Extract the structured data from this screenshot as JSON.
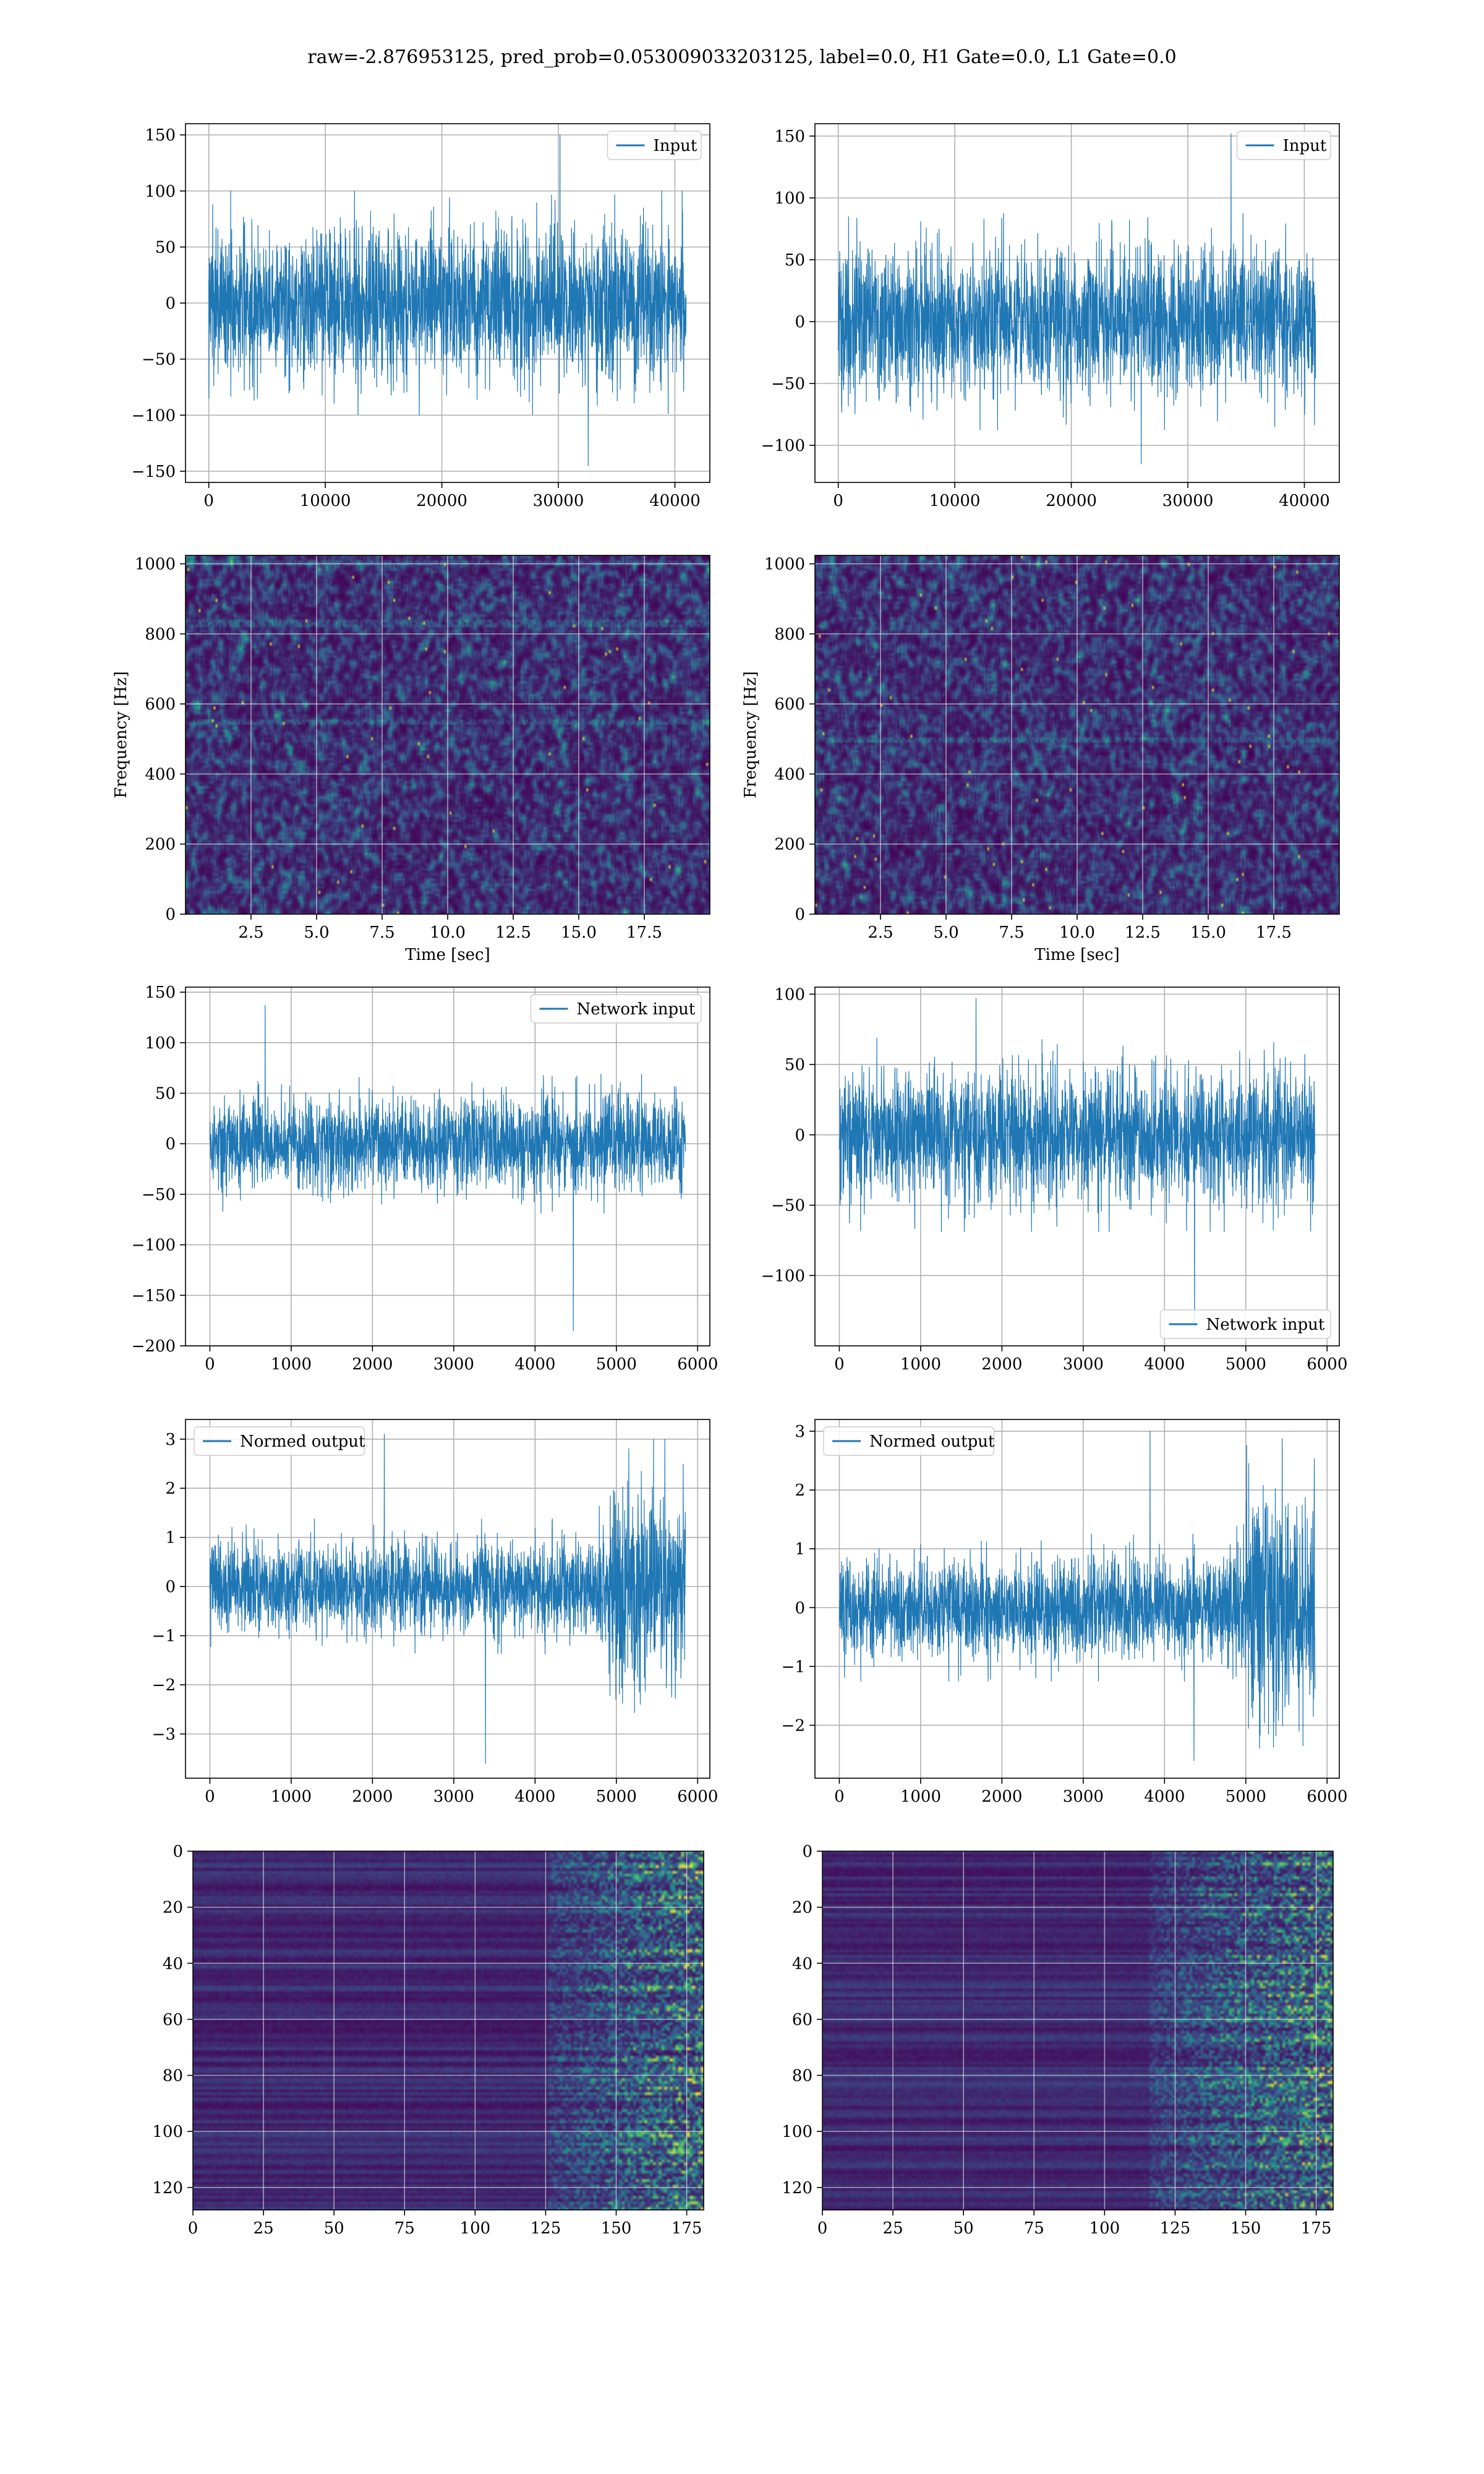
{
  "figure_title": "raw=-2.876953125, pred_prob=0.053009033203125, label=0.0, H1 Gate=0.0, L1 Gate=0.0",
  "colors": {
    "line": "#1f77b4",
    "grid": "#b0b0b0",
    "axes": "#000000",
    "cmap": [
      "#440154",
      "#3b528b",
      "#21918c",
      "#5ec962",
      "#fde725"
    ]
  },
  "chart_data": [
    {
      "id": "input-h1",
      "type": "line",
      "series": [
        {
          "name": "Input",
          "amplitude": 80,
          "spikes": [
            150,
            -145
          ]
        }
      ],
      "legend": "top-right",
      "xlim": [
        -2000,
        43000
      ],
      "ylim": [
        -160,
        160
      ],
      "xticks": [
        0,
        10000,
        20000,
        30000,
        40000
      ],
      "xtick_labels": [
        "0",
        "10000",
        "20000",
        "30000",
        "40000"
      ],
      "yticks": [
        -150,
        -100,
        -50,
        0,
        50,
        100,
        150
      ],
      "ytick_labels": [
        "−150",
        "−100",
        "−50",
        "0",
        "50",
        "100",
        "150"
      ],
      "x_range": [
        0,
        40960
      ],
      "xlabel": "",
      "ylabel": "",
      "grid": true
    },
    {
      "id": "input-l1",
      "type": "line",
      "series": [
        {
          "name": "Input",
          "amplitude": 70,
          "spikes": [
            152,
            -115
          ]
        }
      ],
      "legend": "top-right",
      "xlim": [
        -2000,
        43000
      ],
      "ylim": [
        -130,
        160
      ],
      "xticks": [
        0,
        10000,
        20000,
        30000,
        40000
      ],
      "xtick_labels": [
        "0",
        "10000",
        "20000",
        "30000",
        "40000"
      ],
      "yticks": [
        -100,
        -50,
        0,
        50,
        100,
        150
      ],
      "ytick_labels": [
        "−100",
        "−50",
        "0",
        "50",
        "100",
        "150"
      ],
      "x_range": [
        0,
        40960
      ],
      "xlabel": "",
      "ylabel": "",
      "grid": true
    },
    {
      "id": "spectrogram-h1",
      "type": "heatmap",
      "xlabel": "Time [sec]",
      "ylabel": "Frequency [Hz]",
      "xlim": [
        0,
        20
      ],
      "ylim": [
        0,
        1024
      ],
      "xticks": [
        2.5,
        5.0,
        7.5,
        10.0,
        12.5,
        15.0,
        17.5
      ],
      "xtick_labels": [
        "2.5",
        "5.0",
        "7.5",
        "10.0",
        "12.5",
        "15.0",
        "17.5"
      ],
      "yticks": [
        0,
        200,
        400,
        600,
        800,
        1000
      ],
      "ytick_labels": [
        "0",
        "200",
        "400",
        "600",
        "800",
        "1000"
      ],
      "bright_bands_hz": [
        830,
        550,
        1000
      ],
      "grid": true
    },
    {
      "id": "spectrogram-l1",
      "type": "heatmap",
      "xlabel": "Time [sec]",
      "ylabel": "Frequency [Hz]",
      "xlim": [
        0,
        20
      ],
      "ylim": [
        0,
        1024
      ],
      "xticks": [
        2.5,
        5.0,
        7.5,
        10.0,
        12.5,
        15.0,
        17.5
      ],
      "xtick_labels": [
        "2.5",
        "5.0",
        "7.5",
        "10.0",
        "12.5",
        "15.0",
        "17.5"
      ],
      "yticks": [
        0,
        200,
        400,
        600,
        800,
        1000
      ],
      "ytick_labels": [
        "0",
        "200",
        "400",
        "600",
        "800",
        "1000"
      ],
      "bright_bands_hz": [
        500
      ],
      "grid": true
    },
    {
      "id": "network-input-h1",
      "type": "line",
      "series": [
        {
          "name": "Network input",
          "amplitude": 55,
          "spikes": [
            137,
            -185
          ]
        }
      ],
      "legend": "top-right",
      "xlim": [
        -300,
        6150
      ],
      "ylim": [
        -200,
        155
      ],
      "xticks": [
        0,
        1000,
        2000,
        3000,
        4000,
        5000,
        6000
      ],
      "xtick_labels": [
        "0",
        "1000",
        "2000",
        "3000",
        "4000",
        "5000",
        "6000"
      ],
      "yticks": [
        -200,
        -150,
        -100,
        -50,
        0,
        50,
        100,
        150
      ],
      "ytick_labels": [
        "−200",
        "−150",
        "−100",
        "−50",
        "0",
        "50",
        "100",
        "150"
      ],
      "x_range": [
        0,
        5850
      ],
      "xlabel": "",
      "ylabel": "",
      "grid": true
    },
    {
      "id": "network-input-l1",
      "type": "line",
      "series": [
        {
          "name": "Network input",
          "amplitude": 55,
          "spikes": [
            97,
            -137
          ]
        }
      ],
      "legend": "bottom-right",
      "xlim": [
        -300,
        6150
      ],
      "ylim": [
        -150,
        105
      ],
      "xticks": [
        0,
        1000,
        2000,
        3000,
        4000,
        5000,
        6000
      ],
      "xtick_labels": [
        "0",
        "1000",
        "2000",
        "3000",
        "4000",
        "5000",
        "6000"
      ],
      "yticks": [
        -100,
        -50,
        0,
        50,
        100
      ],
      "ytick_labels": [
        "−100",
        "−50",
        "0",
        "50",
        "100"
      ],
      "x_range": [
        0,
        5850
      ],
      "xlabel": "",
      "ylabel": "",
      "grid": true
    },
    {
      "id": "normed-output-h1",
      "type": "line",
      "series": [
        {
          "name": "Normed output",
          "amplitude": 1.1,
          "late_amplitude": 2.4,
          "late_start": 4750,
          "spikes": [
            3.1,
            -3.6
          ]
        }
      ],
      "legend": "top-left",
      "xlim": [
        -300,
        6150
      ],
      "ylim": [
        -3.9,
        3.4
      ],
      "xticks": [
        0,
        1000,
        2000,
        3000,
        4000,
        5000,
        6000
      ],
      "xtick_labels": [
        "0",
        "1000",
        "2000",
        "3000",
        "4000",
        "5000",
        "6000"
      ],
      "yticks": [
        -3,
        -2,
        -1,
        0,
        1,
        2,
        3
      ],
      "ytick_labels": [
        "−3",
        "−2",
        "−1",
        "0",
        "1",
        "2",
        "3"
      ],
      "x_range": [
        0,
        5850
      ],
      "xlabel": "",
      "ylabel": "",
      "grid": true
    },
    {
      "id": "normed-output-l1",
      "type": "line",
      "series": [
        {
          "name": "Normed output",
          "amplitude": 1.0,
          "late_amplitude": 2.3,
          "late_start": 4750,
          "spikes": [
            3.0,
            -2.6
          ]
        }
      ],
      "legend": "top-left",
      "xlim": [
        -300,
        6150
      ],
      "ylim": [
        -2.9,
        3.2
      ],
      "xticks": [
        0,
        1000,
        2000,
        3000,
        4000,
        5000,
        6000
      ],
      "xtick_labels": [
        "0",
        "1000",
        "2000",
        "3000",
        "4000",
        "5000",
        "6000"
      ],
      "yticks": [
        -2,
        -1,
        0,
        1,
        2,
        3
      ],
      "ytick_labels": [
        "−2",
        "−1",
        "0",
        "1",
        "2",
        "3"
      ],
      "x_range": [
        0,
        5850
      ],
      "xlabel": "",
      "ylabel": "",
      "grid": true
    },
    {
      "id": "feature-map-h1",
      "type": "heatmap",
      "xlim": [
        0,
        181
      ],
      "ylim": [
        128,
        0
      ],
      "xticks": [
        0,
        25,
        50,
        75,
        100,
        125,
        150,
        175
      ],
      "xtick_labels": [
        "0",
        "25",
        "50",
        "75",
        "100",
        "125",
        "150",
        "175"
      ],
      "yticks": [
        0,
        20,
        40,
        60,
        80,
        100,
        120
      ],
      "ytick_labels": [
        "0",
        "20",
        "40",
        "60",
        "80",
        "100",
        "120"
      ],
      "active_from_column": 125,
      "xlabel": "",
      "ylabel": "",
      "grid": true
    },
    {
      "id": "feature-map-l1",
      "type": "heatmap",
      "xlim": [
        0,
        181
      ],
      "ylim": [
        128,
        0
      ],
      "xticks": [
        0,
        25,
        50,
        75,
        100,
        125,
        150,
        175
      ],
      "xtick_labels": [
        "0",
        "25",
        "50",
        "75",
        "100",
        "125",
        "150",
        "175"
      ],
      "yticks": [
        0,
        20,
        40,
        60,
        80,
        100,
        120
      ],
      "ytick_labels": [
        "0",
        "20",
        "40",
        "60",
        "80",
        "100",
        "120"
      ],
      "active_from_column": 115,
      "xlabel": "",
      "ylabel": "",
      "grid": true
    }
  ]
}
